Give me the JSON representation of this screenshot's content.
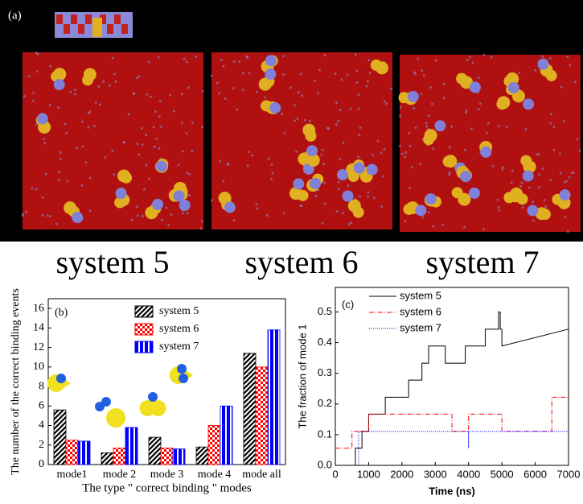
{
  "panel_a": {
    "label": "(a)",
    "captions": [
      "system 5",
      "system 6",
      "system 7"
    ]
  },
  "chart_data": [
    {
      "type": "bar",
      "panel_label": "(b)",
      "ylabel": "The number of the correct binding events",
      "xlabel": "The type \" correct binding \" modes",
      "categories": [
        "mode1",
        "mode 2",
        "mode 3",
        "mode 4",
        "mode all"
      ],
      "series": [
        {
          "name": "system 5",
          "color": "#000000",
          "pattern": "hatch",
          "values": [
            5.6,
            1.2,
            2.8,
            1.8,
            11.4
          ]
        },
        {
          "name": "system 6",
          "color": "#ff0000",
          "pattern": "check",
          "values": [
            2.5,
            1.7,
            1.7,
            4.0,
            10.0
          ]
        },
        {
          "name": "system 7",
          "color": "#0000ff",
          "pattern": "stripe",
          "values": [
            2.4,
            3.8,
            1.6,
            6.0,
            13.8
          ]
        }
      ],
      "ylim": [
        0,
        17
      ],
      "yticks": [
        0,
        2,
        4,
        6,
        8,
        10,
        12,
        14,
        16
      ]
    },
    {
      "type": "line",
      "panel_label": "(c)",
      "ylabel": "The fraction of  mode 1",
      "xlabel": "Time (ns)",
      "series": [
        {
          "name": "system 5",
          "color": "#000000",
          "linestyle": "solid",
          "x": [
            0,
            600,
            600,
            800,
            800,
            1000,
            1000,
            1500,
            1500,
            1700,
            1700,
            2200,
            2200,
            2600,
            2600,
            2800,
            2800,
            3300,
            3300,
            3900,
            3900,
            4500,
            4500,
            4900,
            4900,
            4950,
            4950,
            5000,
            5000,
            7000
          ],
          "values": [
            0,
            0,
            0.056,
            0.056,
            0.111,
            0.111,
            0.167,
            0.167,
            0.222,
            0.222,
            0.222,
            0.222,
            0.278,
            0.278,
            0.333,
            0.333,
            0.389,
            0.389,
            0.333,
            0.333,
            0.389,
            0.389,
            0.444,
            0.444,
            0.5,
            0.5,
            0.444,
            0.444,
            0.389,
            0.444
          ]
        },
        {
          "name": "system 6",
          "color": "#ff0000",
          "linestyle": "dashdot",
          "x": [
            0,
            500,
            500,
            1000,
            1000,
            3500,
            3500,
            4000,
            4000,
            5000,
            5000,
            6500,
            6500,
            7000
          ],
          "values": [
            0.056,
            0.056,
            0.111,
            0.111,
            0.167,
            0.167,
            0.111,
            0.111,
            0.167,
            0.167,
            0.111,
            0.111,
            0.222,
            0.222
          ]
        },
        {
          "name": "system 7",
          "color": "#0000ff",
          "linestyle": "dotted",
          "x": [
            700,
            700,
            4000,
            4000,
            4000,
            7000
          ],
          "values": [
            0,
            0.111,
            0.111,
            0.056,
            0.111,
            0.111
          ]
        }
      ],
      "xlim": [
        0,
        7000
      ],
      "xticks": [
        0,
        1000,
        2000,
        3000,
        4000,
        5000,
        6000,
        7000
      ],
      "ylim": [
        0,
        0.58
      ],
      "yticks": [
        {
          "value": 0,
          "label": "0.0"
        },
        0.1,
        0.2,
        0.3,
        0.4,
        0.5
      ]
    }
  ]
}
